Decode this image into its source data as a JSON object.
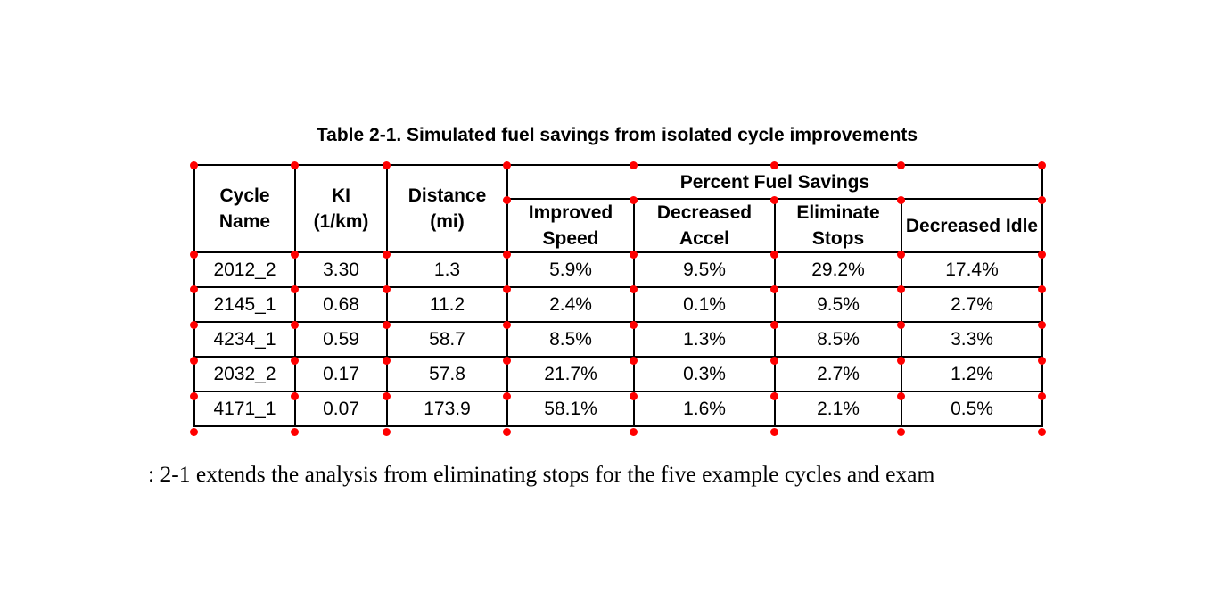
{
  "title": "Table 2-1. Simulated fuel savings from isolated cycle improvements",
  "table": {
    "headers": {
      "cycle_name": "Cycle Name",
      "ki": "KI (1/km)",
      "distance": "Distance (mi)",
      "group": "Percent Fuel Savings",
      "improved_speed": "Improved Speed",
      "decreased_accel": "Decreased Accel",
      "eliminate_stops": "Eliminate Stops",
      "decreased_idle": "Decreased Idle"
    },
    "rows": [
      [
        "2012_2",
        "3.30",
        "1.3",
        "5.9%",
        "9.5%",
        "29.2%",
        "17.4%"
      ],
      [
        "2145_1",
        "0.68",
        "11.2",
        "2.4%",
        "0.1%",
        "9.5%",
        "2.7%"
      ],
      [
        "4234_1",
        "0.59",
        "58.7",
        "8.5%",
        "1.3%",
        "8.5%",
        "3.3%"
      ],
      [
        "2032_2",
        "0.17",
        "57.8",
        "21.7%",
        "0.3%",
        "2.7%",
        "1.2%"
      ],
      [
        "4171_1",
        "0.07",
        "173.9",
        "58.1%",
        "1.6%",
        "2.1%",
        "0.5%"
      ]
    ]
  },
  "marker_color": "#ff0000",
  "body_text": ": 2-1 extends the analysis from eliminating stops for the five example cycles and exam"
}
